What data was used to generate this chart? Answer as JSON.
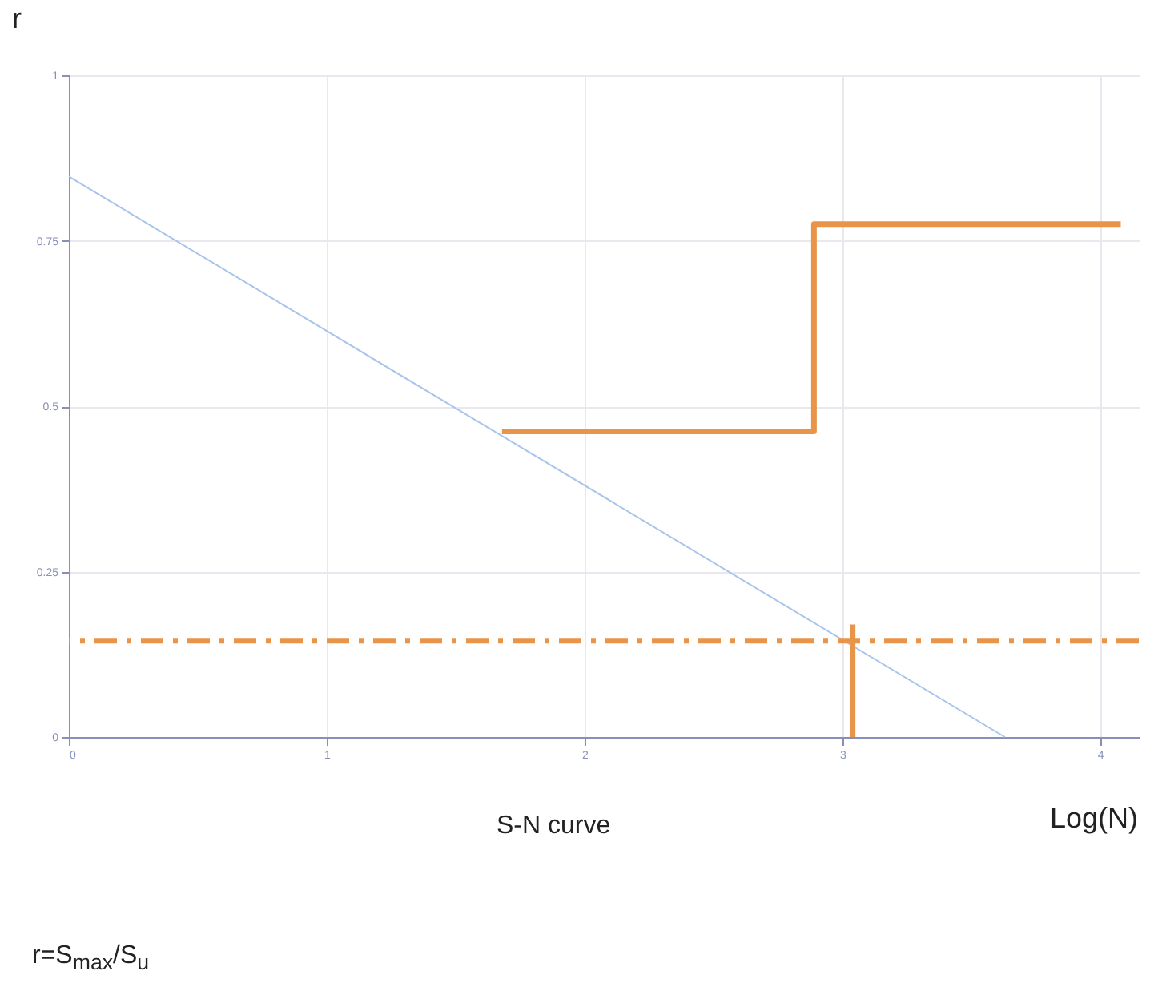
{
  "chart_data": {
    "type": "line",
    "xlabel": "Log(N)",
    "ylabel": "r",
    "annotations": [
      "S-N curve",
      "r=S$_{max}$/S$_{u}$"
    ],
    "xlim": [
      0,
      4.15
    ],
    "xticks": [
      0,
      1,
      2,
      3,
      4
    ],
    "ylim": [
      0,
      1
    ],
    "yticks": [
      0,
      0.25,
      0.5,
      0.75,
      1
    ],
    "grid": true,
    "line_style": "solid",
    "series": [
      {
        "color": "#a9c4eb",
        "x": [
          0,
          3.63
        ],
        "values": [
          0.847,
          0
        ]
      },
      {
        "color": "#e8954a",
        "x": [
          1.68,
          2.89,
          2.89,
          4.08
        ],
        "values": [
          0.462,
          0.462,
          0.775,
          0.775
        ]
      },
      {
        "color": "#e8954a",
        "x": [
          3.04,
          3.04
        ],
        "values": [
          0.17,
          0
        ]
      }
    ],
    "ref_lines": [
      {
        "axis": "y",
        "value": 0.145,
        "color": "#e8954a",
        "line_style": "dashed"
      }
    ]
  }
}
